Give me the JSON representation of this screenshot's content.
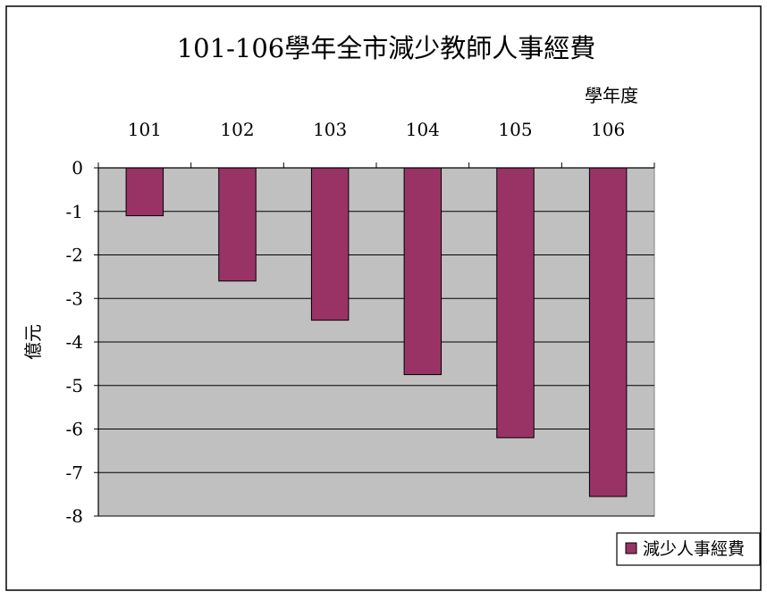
{
  "chart_data": {
    "type": "bar",
    "title": "101-106學年全市減少教師人事經費",
    "xlabel": "學年度",
    "ylabel": "億元",
    "categories": [
      "101",
      "102",
      "103",
      "104",
      "105",
      "106"
    ],
    "series": [
      {
        "name": "減少人事經費",
        "values": [
          -1.1,
          -2.6,
          -3.5,
          -4.75,
          -6.2,
          -7.55
        ]
      }
    ],
    "ylim": [
      -8,
      0
    ],
    "yticks": [
      "0",
      "-1",
      "-2",
      "-3",
      "-4",
      "-5",
      "-6",
      "-7",
      "-8"
    ],
    "grid": true,
    "x_axis_position": "top",
    "legend_position": "bottom-right",
    "colors": {
      "bar": "#993366",
      "plot_bg": "#c0c0c0",
      "frame_bg": "#ffffff",
      "frame_border": "#000000"
    }
  }
}
